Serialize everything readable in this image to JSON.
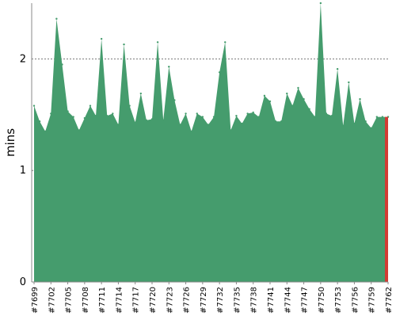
{
  "chart_data": {
    "type": "area",
    "ylabel": "mins",
    "xlabel": "",
    "ylim": [
      0,
      2.5
    ],
    "yticks": [
      "0",
      "1",
      "2"
    ],
    "grid": "horizontal dotted lines at 1 and 2",
    "x": [
      "#7699",
      "#7700",
      "#7701",
      "#7702",
      "#7703",
      "#7704",
      "#7705",
      "#7706",
      "#7707",
      "#7708",
      "#7709",
      "#7710",
      "#7711",
      "#7712",
      "#7713",
      "#7714",
      "#7715",
      "#7716",
      "#7717",
      "#7718",
      "#7719",
      "#7720",
      "#7721",
      "#7722",
      "#7723",
      "#7724",
      "#7725",
      "#7726",
      "#7727",
      "#7728",
      "#7729",
      "#7730",
      "#7731",
      "#7732",
      "#7733",
      "#7734",
      "#7735",
      "#7736",
      "#7737",
      "#7738",
      "#7739",
      "#7740",
      "#7741",
      "#7742",
      "#7743",
      "#7744",
      "#7745",
      "#7746",
      "#7747",
      "#7748",
      "#7749",
      "#7750",
      "#7751",
      "#7752",
      "#7753",
      "#7754",
      "#7755",
      "#7756",
      "#7757",
      "#7758",
      "#7759",
      "#7760",
      "#7761",
      "#7762"
    ],
    "x_tick_labels": [
      "#7699",
      "#7702",
      "#7705",
      "#7708",
      "#7711",
      "#7714",
      "#7717",
      "#7720",
      "#7723",
      "#7726",
      "#7729",
      "#7732",
      "#7735",
      "#7738",
      "#7741",
      "#7744",
      "#7747",
      "#7750",
      "#7753",
      "#7756",
      "#7759",
      "#7762"
    ],
    "values": [
      1.58,
      1.44,
      1.35,
      1.51,
      2.36,
      1.95,
      1.53,
      1.48,
      1.36,
      1.47,
      1.58,
      1.49,
      2.18,
      1.49,
      1.51,
      1.41,
      2.13,
      1.58,
      1.43,
      1.69,
      1.45,
      1.46,
      2.15,
      1.45,
      1.93,
      1.63,
      1.41,
      1.51,
      1.35,
      1.51,
      1.48,
      1.41,
      1.48,
      1.88,
      2.15,
      1.36,
      1.49,
      1.42,
      1.51,
      1.52,
      1.48,
      1.67,
      1.62,
      1.44,
      1.44,
      1.69,
      1.58,
      1.74,
      1.64,
      1.55,
      1.48,
      2.5,
      1.51,
      1.49,
      1.91,
      1.4,
      1.79,
      1.42,
      1.64,
      1.44,
      1.38,
      1.48,
      1.48,
      1.48
    ],
    "series_color": "#459c6d",
    "highlight_color": "#d23b34",
    "highlight_label": "#7762"
  }
}
